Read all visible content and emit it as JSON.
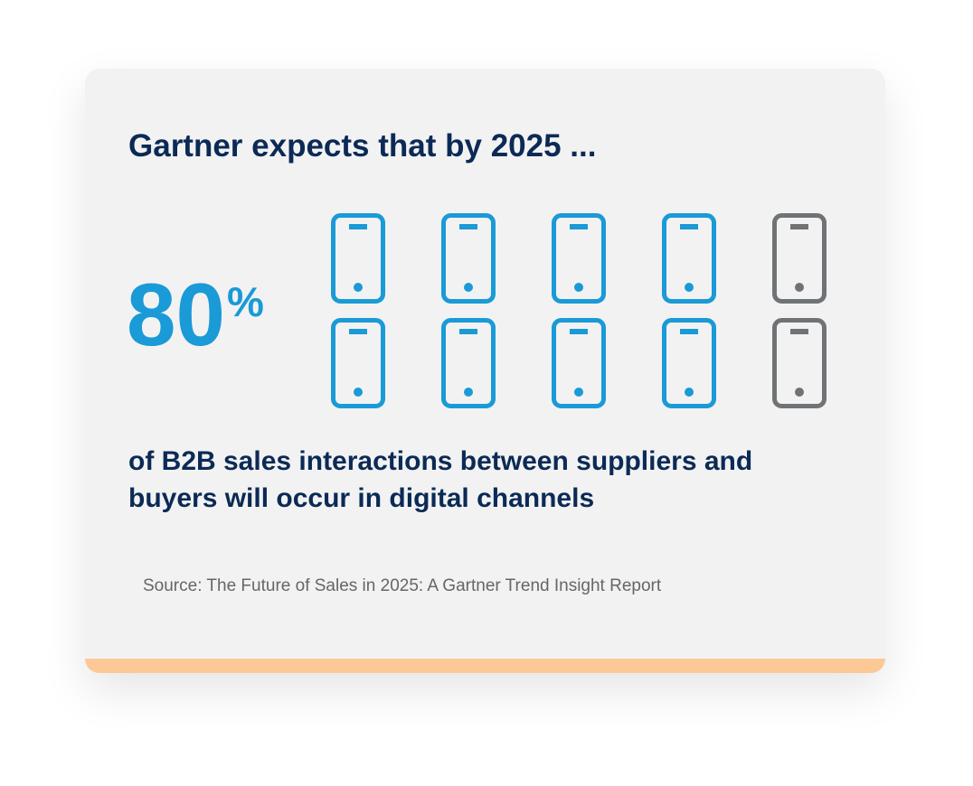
{
  "title": "Gartner expects that by 2025 ...",
  "stat": {
    "value": 80,
    "unit": "%",
    "color": "#1a9ad6",
    "rest_color": "#6f7375"
  },
  "description": [
    "of B2B sales interactions between suppliers and",
    "buyers will occur in digital channels"
  ],
  "source": "Source: The Future of Sales in 2025: A Gartner Trend Insight Report"
}
